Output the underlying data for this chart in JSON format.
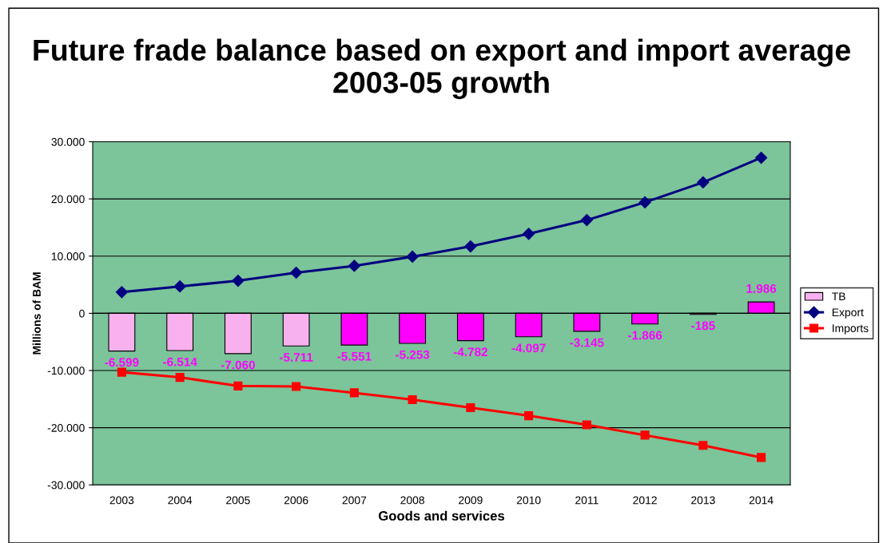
{
  "chart_data": {
    "type": "bar",
    "title": "Future frade balance based on export and import average 2003-05 growth",
    "xlabel": "Goods and services",
    "ylabel": "Millions of BAM",
    "categories": [
      "2003",
      "2004",
      "2005",
      "2006",
      "2007",
      "2008",
      "2009",
      "2010",
      "2011",
      "2012",
      "2013",
      "2014"
    ],
    "ylim": [
      -30000,
      30000
    ],
    "yticks": [
      {
        "value": -30000,
        "label": "-30.000"
      },
      {
        "value": -20000,
        "label": "-20.000"
      },
      {
        "value": -10000,
        "label": "-10.000"
      },
      0,
      {
        "value": 10000,
        "label": "10.000"
      },
      {
        "value": 20000,
        "label": "20.000"
      },
      {
        "value": 30000,
        "label": "30.000"
      }
    ],
    "grid": "y",
    "legend": "right",
    "series": [
      {
        "name": "TB",
        "color": "#ff00ff",
        "colors": [
          "#f9b0ee",
          "#f9b0ee",
          "#f9b0ee",
          "#f9b0ee",
          "#ff00ff",
          "#ff00ff",
          "#ff00ff",
          "#ff00ff",
          "#ff00ff",
          "#ff00ff",
          "#ff00ff",
          "#ff00ff"
        ],
        "values": [
          -6599,
          -6514,
          -7060,
          -5711,
          -5551,
          -5253,
          -4782,
          -4097,
          -3145,
          -1866,
          -185,
          1986
        ],
        "value_labels": [
          "-6.599",
          "-6.514",
          "-7.060",
          "-5.711",
          "-5.551",
          "-5.253",
          "-4.782",
          "-4.097",
          "-3.145",
          "-1.866",
          "-185",
          "1.986"
        ]
      },
      {
        "name": "Export",
        "type": "line",
        "color": "#000080",
        "marker": "diamond",
        "values": [
          3700,
          4700,
          5700,
          7100,
          8300,
          9900,
          11700,
          13900,
          16300,
          19400,
          22900,
          27200
        ]
      },
      {
        "name": "Imports",
        "type": "line",
        "color": "#ff0000",
        "marker": "square",
        "values": [
          -10300,
          -11200,
          -12700,
          -12800,
          -13900,
          -15100,
          -16500,
          -17900,
          -19500,
          -21300,
          -23100,
          -25200
        ]
      }
    ]
  }
}
